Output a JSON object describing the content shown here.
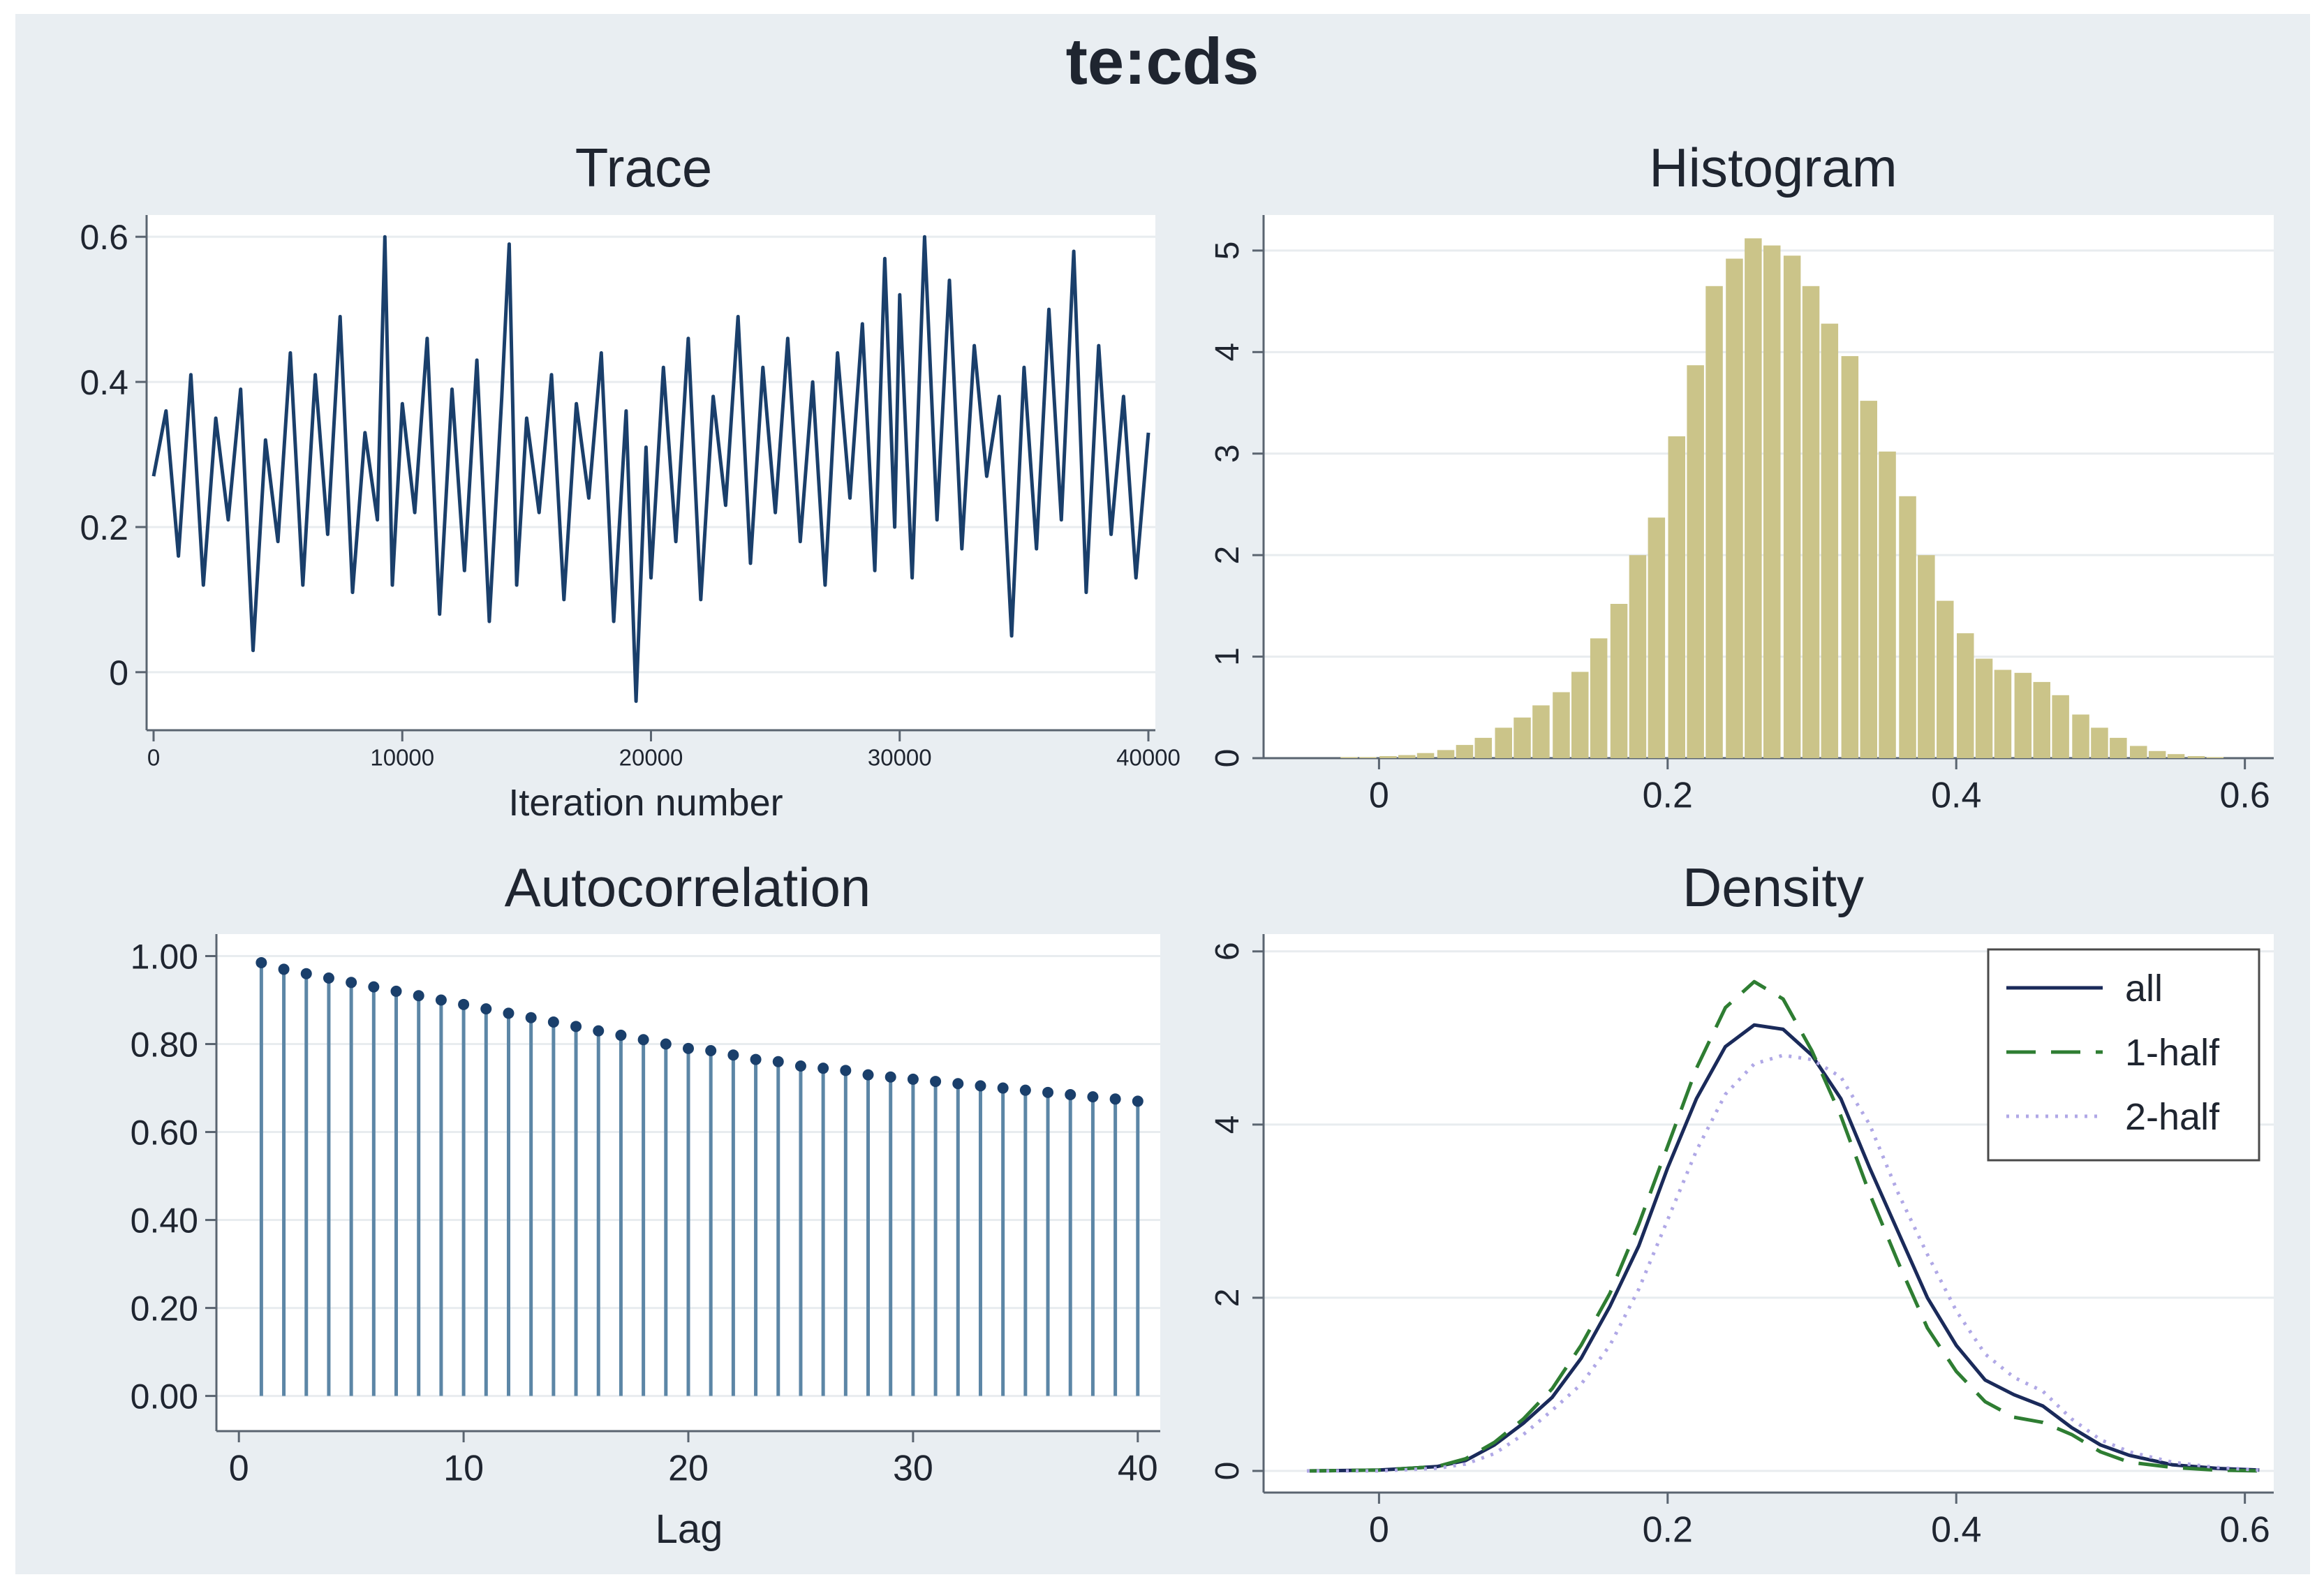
{
  "title": "te:cds",
  "chart_data": [
    {
      "type": "line",
      "title": "Trace",
      "xlabel": "Iteration number",
      "ylabel": "",
      "xlim": [
        0,
        40000
      ],
      "ylim": [
        -0.08,
        0.63
      ],
      "xticks": [
        "0",
        "10000",
        "20000",
        "30000",
        "40000"
      ],
      "yticks": [
        "0",
        "0.2",
        "0.4",
        "0.6"
      ],
      "grid": true,
      "color": "#1a3f6b",
      "series": [
        {
          "x": [
            0,
            500,
            1000,
            1500,
            2000,
            2500,
            3000,
            3500,
            4000,
            4500,
            5000,
            5500,
            6000,
            6500,
            7000,
            7500,
            8000,
            8500,
            9000,
            9300,
            9600,
            10000,
            10500,
            11000,
            11500,
            12000,
            12500,
            13000,
            13500,
            14000,
            14300,
            14600,
            15000,
            15500,
            16000,
            16500,
            17000,
            17500,
            18000,
            18500,
            19000,
            19400,
            19800,
            20000,
            20500,
            21000,
            21500,
            22000,
            22500,
            23000,
            23500,
            24000,
            24500,
            25000,
            25500,
            26000,
            26500,
            27000,
            27500,
            28000,
            28500,
            29000,
            29400,
            29800,
            30000,
            30500,
            31000,
            31500,
            32000,
            32500,
            33000,
            33500,
            34000,
            34500,
            35000,
            35500,
            36000,
            36500,
            37000,
            37500,
            38000,
            38500,
            39000,
            39500,
            40000
          ],
          "values": [
            0.27,
            0.36,
            0.16,
            0.41,
            0.12,
            0.35,
            0.21,
            0.39,
            0.03,
            0.32,
            0.18,
            0.44,
            0.12,
            0.41,
            0.19,
            0.49,
            0.11,
            0.33,
            0.21,
            0.6,
            0.12,
            0.37,
            0.22,
            0.46,
            0.08,
            0.39,
            0.14,
            0.43,
            0.07,
            0.38,
            0.59,
            0.12,
            0.35,
            0.22,
            0.41,
            0.1,
            0.37,
            0.24,
            0.44,
            0.07,
            0.36,
            -0.04,
            0.31,
            0.13,
            0.42,
            0.18,
            0.46,
            0.1,
            0.38,
            0.23,
            0.49,
            0.15,
            0.42,
            0.22,
            0.46,
            0.18,
            0.4,
            0.12,
            0.44,
            0.24,
            0.48,
            0.14,
            0.57,
            0.2,
            0.52,
            0.13,
            0.6,
            0.21,
            0.54,
            0.17,
            0.45,
            0.27,
            0.38,
            0.05,
            0.42,
            0.17,
            0.5,
            0.21,
            0.58,
            0.11,
            0.45,
            0.19,
            0.38,
            0.13,
            0.33
          ]
        }
      ]
    },
    {
      "type": "bar",
      "title": "Histogram",
      "xlim": [
        -0.08,
        0.62
      ],
      "ylim": [
        0,
        5.35
      ],
      "xticks": [
        "0",
        "0.2",
        "0.4",
        "0.6"
      ],
      "yticks": [
        "0",
        "1",
        "2",
        "3",
        "4",
        "5"
      ],
      "grid": true,
      "color": "#cbc489",
      "bin_width": 0.0133,
      "x": [
        -0.02,
        -0.007,
        0.007,
        0.02,
        0.033,
        0.047,
        0.06,
        0.073,
        0.087,
        0.1,
        0.113,
        0.127,
        0.14,
        0.153,
        0.167,
        0.18,
        0.193,
        0.207,
        0.22,
        0.233,
        0.247,
        0.26,
        0.273,
        0.287,
        0.3,
        0.313,
        0.327,
        0.34,
        0.353,
        0.367,
        0.38,
        0.393,
        0.407,
        0.42,
        0.433,
        0.447,
        0.46,
        0.473,
        0.487,
        0.5,
        0.513,
        0.527,
        0.54,
        0.553,
        0.567,
        0.58
      ],
      "values": [
        0.01,
        0.01,
        0.02,
        0.03,
        0.05,
        0.08,
        0.13,
        0.2,
        0.3,
        0.4,
        0.52,
        0.65,
        0.85,
        1.18,
        1.52,
        2.0,
        2.37,
        3.17,
        3.87,
        4.65,
        4.92,
        5.12,
        5.05,
        4.95,
        4.65,
        4.28,
        3.96,
        3.52,
        3.02,
        2.58,
        2.0,
        1.55,
        1.23,
        0.98,
        0.87,
        0.84,
        0.75,
        0.62,
        0.43,
        0.3,
        0.2,
        0.12,
        0.07,
        0.04,
        0.02,
        0.01
      ]
    },
    {
      "type": "bar",
      "title": "Autocorrelation",
      "xlabel": "Lag",
      "xlim": [
        -1,
        41
      ],
      "ylim": [
        -0.08,
        1.05
      ],
      "xticks": [
        "0",
        "10",
        "20",
        "30",
        "40"
      ],
      "yticks": [
        "0.00",
        "0.20",
        "0.40",
        "0.60",
        "0.80",
        "1.00"
      ],
      "grid": true,
      "color": "#5c86a6",
      "x": [
        1,
        2,
        3,
        4,
        5,
        6,
        7,
        8,
        9,
        10,
        11,
        12,
        13,
        14,
        15,
        16,
        17,
        18,
        19,
        20,
        21,
        22,
        23,
        24,
        25,
        26,
        27,
        28,
        29,
        30,
        31,
        32,
        33,
        34,
        35,
        36,
        37,
        38,
        39,
        40
      ],
      "values": [
        0.985,
        0.97,
        0.96,
        0.95,
        0.94,
        0.93,
        0.92,
        0.91,
        0.9,
        0.89,
        0.88,
        0.87,
        0.86,
        0.85,
        0.84,
        0.83,
        0.82,
        0.81,
        0.8,
        0.79,
        0.785,
        0.775,
        0.765,
        0.76,
        0.75,
        0.745,
        0.74,
        0.73,
        0.725,
        0.72,
        0.715,
        0.71,
        0.705,
        0.7,
        0.695,
        0.69,
        0.685,
        0.68,
        0.675,
        0.67
      ]
    },
    {
      "type": "line",
      "title": "Density",
      "xlim": [
        -0.08,
        0.62
      ],
      "ylim": [
        -0.25,
        6.2
      ],
      "xticks": [
        "0",
        "0.2",
        "0.4",
        "0.6"
      ],
      "yticks": [
        "0",
        "2",
        "4",
        "6"
      ],
      "grid": true,
      "legend": "top-right",
      "x": [
        -0.05,
        0.0,
        0.04,
        0.06,
        0.08,
        0.1,
        0.12,
        0.14,
        0.16,
        0.18,
        0.2,
        0.22,
        0.24,
        0.26,
        0.28,
        0.3,
        0.32,
        0.34,
        0.36,
        0.38,
        0.4,
        0.42,
        0.44,
        0.46,
        0.48,
        0.5,
        0.52,
        0.55,
        0.58,
        0.61
      ],
      "series": [
        {
          "name": "all",
          "color": "#1a2a5a",
          "dash": "solid",
          "values": [
            0.0,
            0.01,
            0.05,
            0.12,
            0.3,
            0.55,
            0.85,
            1.3,
            1.9,
            2.6,
            3.5,
            4.3,
            4.9,
            5.15,
            5.1,
            4.8,
            4.3,
            3.5,
            2.75,
            2.0,
            1.45,
            1.05,
            0.88,
            0.75,
            0.5,
            0.3,
            0.18,
            0.07,
            0.03,
            0.01
          ]
        },
        {
          "name": "1-half",
          "color": "#2e7d32",
          "dash": "long-dash",
          "values": [
            0.0,
            0.01,
            0.05,
            0.14,
            0.33,
            0.6,
            0.95,
            1.45,
            2.05,
            2.85,
            3.75,
            4.65,
            5.35,
            5.65,
            5.45,
            4.85,
            4.1,
            3.2,
            2.4,
            1.65,
            1.15,
            0.8,
            0.62,
            0.56,
            0.42,
            0.22,
            0.1,
            0.04,
            0.01,
            0.0
          ]
        },
        {
          "name": "2-half",
          "color": "#b0a8e6",
          "dash": "dotted",
          "values": [
            0.0,
            0.0,
            0.03,
            0.08,
            0.2,
            0.42,
            0.7,
            1.0,
            1.45,
            2.1,
            2.9,
            3.7,
            4.35,
            4.7,
            4.8,
            4.75,
            4.55,
            4.0,
            3.2,
            2.5,
            1.85,
            1.35,
            1.08,
            0.92,
            0.6,
            0.36,
            0.22,
            0.1,
            0.04,
            0.01
          ]
        }
      ]
    }
  ]
}
